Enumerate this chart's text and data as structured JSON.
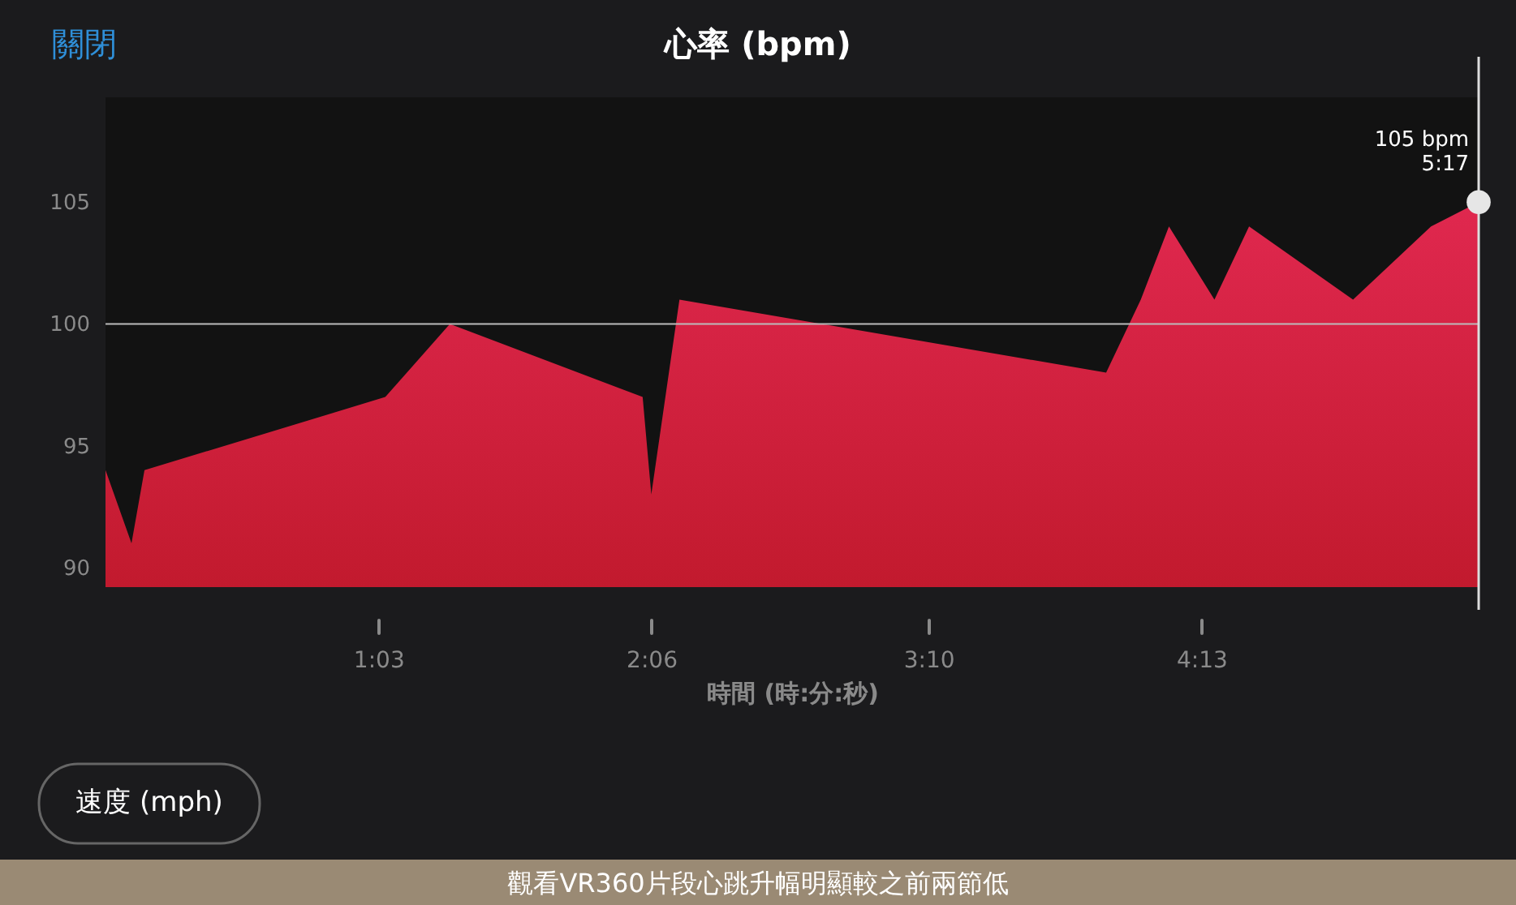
{
  "chart_data": {
    "type": "area",
    "title": "心率 (bpm)",
    "xlabel": "時間 (時:分:秒)",
    "x": [
      0,
      6,
      9,
      64.6,
      79.5,
      124,
      126,
      132.5,
      231,
      239,
      245.5,
      256,
      264,
      288,
      306,
      317
    ],
    "series": [
      {
        "color": "#e0284f",
        "values": [
          94,
          91,
          94,
          97,
          100,
          97,
          93,
          101,
          98,
          101,
          104,
          101,
          104,
          101,
          104,
          105
        ]
      }
    ],
    "xlim": [
      0,
      317
    ],
    "xticks": [
      {
        "value": 63,
        "label": "1:03"
      },
      {
        "value": 126,
        "label": "2:06"
      },
      {
        "value": 190,
        "label": "3:10"
      },
      {
        "value": 253,
        "label": "4:13"
      }
    ],
    "ylim": [
      89.2,
      109.3
    ],
    "yticks": [
      90,
      95,
      100,
      105
    ],
    "ref_lines": [
      {
        "axis": "y",
        "value": 100,
        "color": "#bbbbbb"
      }
    ],
    "grid": false,
    "annotations": [
      {
        "text": "105 bpm\n5:17",
        "x": 317,
        "y": 105
      },
      "關閉",
      "速度 (mph)",
      "觀看VR360片段心跳升幅明顯較之前兩節低"
    ]
  }
}
